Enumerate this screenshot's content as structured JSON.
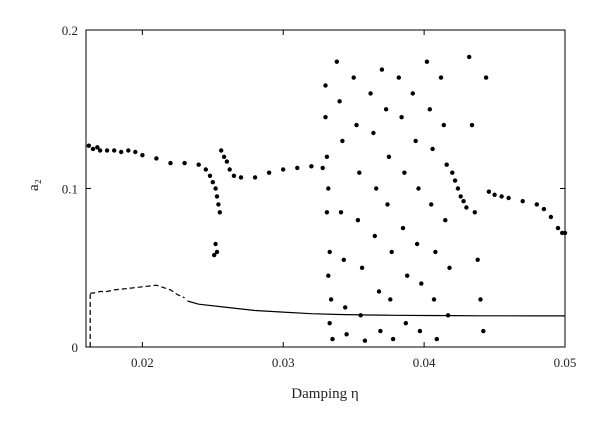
{
  "chart_data": {
    "type": "scatter",
    "title": "",
    "xlabel": "Damping η",
    "ylabel": "a₂",
    "xlim": [
      0.016,
      0.05
    ],
    "ylim": [
      0,
      0.2
    ],
    "x_ticks": [
      0.02,
      0.03,
      0.04,
      0.05
    ],
    "x_tick_labels": [
      "0.02",
      "0.03",
      "0.04",
      "0.05"
    ],
    "y_ticks": [
      0,
      0.1,
      0.2
    ],
    "y_tick_labels": [
      "0",
      "0.1",
      "0.2"
    ],
    "grid": false,
    "legend": "none",
    "series": [
      {
        "style": "points",
        "color": "#000000",
        "points": [
          [
            0.0162,
            0.127
          ],
          [
            0.0165,
            0.125
          ],
          [
            0.0168,
            0.126
          ],
          [
            0.017,
            0.124
          ],
          [
            0.0175,
            0.124
          ],
          [
            0.018,
            0.124
          ],
          [
            0.0185,
            0.123
          ],
          [
            0.019,
            0.124
          ],
          [
            0.0195,
            0.123
          ],
          [
            0.02,
            0.121
          ],
          [
            0.021,
            0.119
          ],
          [
            0.022,
            0.116
          ],
          [
            0.023,
            0.116
          ],
          [
            0.024,
            0.115
          ],
          [
            0.0245,
            0.112
          ],
          [
            0.0248,
            0.108
          ],
          [
            0.025,
            0.104
          ],
          [
            0.0252,
            0.1
          ],
          [
            0.0253,
            0.095
          ],
          [
            0.0254,
            0.09
          ],
          [
            0.0255,
            0.085
          ],
          [
            0.0252,
            0.065
          ],
          [
            0.0253,
            0.06
          ],
          [
            0.0251,
            0.058
          ],
          [
            0.0256,
            0.124
          ],
          [
            0.0258,
            0.12
          ],
          [
            0.026,
            0.117
          ],
          [
            0.0262,
            0.112
          ],
          [
            0.0265,
            0.108
          ],
          [
            0.027,
            0.107
          ],
          [
            0.028,
            0.107
          ],
          [
            0.029,
            0.11
          ],
          [
            0.03,
            0.112
          ],
          [
            0.031,
            0.113
          ],
          [
            0.032,
            0.114
          ],
          [
            0.0328,
            0.113
          ],
          [
            0.033,
            0.165
          ],
          [
            0.033,
            0.145
          ],
          [
            0.0331,
            0.12
          ],
          [
            0.0332,
            0.1
          ],
          [
            0.0331,
            0.085
          ],
          [
            0.0333,
            0.06
          ],
          [
            0.0332,
            0.045
          ],
          [
            0.0334,
            0.03
          ],
          [
            0.0333,
            0.015
          ],
          [
            0.0335,
            0.005
          ],
          [
            0.0338,
            0.18
          ],
          [
            0.034,
            0.155
          ],
          [
            0.0342,
            0.13
          ],
          [
            0.0341,
            0.085
          ],
          [
            0.0343,
            0.055
          ],
          [
            0.0344,
            0.025
          ],
          [
            0.0345,
            0.008
          ],
          [
            0.035,
            0.17
          ],
          [
            0.0352,
            0.14
          ],
          [
            0.0354,
            0.11
          ],
          [
            0.0353,
            0.08
          ],
          [
            0.0356,
            0.05
          ],
          [
            0.0355,
            0.02
          ],
          [
            0.0358,
            0.004
          ],
          [
            0.0362,
            0.16
          ],
          [
            0.0364,
            0.135
          ],
          [
            0.0366,
            0.1
          ],
          [
            0.0365,
            0.07
          ],
          [
            0.0368,
            0.035
          ],
          [
            0.0369,
            0.01
          ],
          [
            0.037,
            0.175
          ],
          [
            0.0373,
            0.15
          ],
          [
            0.0375,
            0.12
          ],
          [
            0.0374,
            0.09
          ],
          [
            0.0377,
            0.06
          ],
          [
            0.0376,
            0.03
          ],
          [
            0.0378,
            0.005
          ],
          [
            0.0382,
            0.17
          ],
          [
            0.0384,
            0.145
          ],
          [
            0.0386,
            0.11
          ],
          [
            0.0385,
            0.075
          ],
          [
            0.0388,
            0.045
          ],
          [
            0.0387,
            0.015
          ],
          [
            0.0392,
            0.16
          ],
          [
            0.0394,
            0.13
          ],
          [
            0.0396,
            0.1
          ],
          [
            0.0395,
            0.065
          ],
          [
            0.0398,
            0.04
          ],
          [
            0.0397,
            0.01
          ],
          [
            0.0402,
            0.18
          ],
          [
            0.0404,
            0.15
          ],
          [
            0.0406,
            0.125
          ],
          [
            0.0405,
            0.09
          ],
          [
            0.0408,
            0.06
          ],
          [
            0.0407,
            0.03
          ],
          [
            0.0409,
            0.005
          ],
          [
            0.0412,
            0.17
          ],
          [
            0.0414,
            0.14
          ],
          [
            0.0416,
            0.115
          ],
          [
            0.0415,
            0.08
          ],
          [
            0.0418,
            0.05
          ],
          [
            0.0417,
            0.02
          ],
          [
            0.042,
            0.11
          ],
          [
            0.0422,
            0.105
          ],
          [
            0.0424,
            0.1
          ],
          [
            0.0426,
            0.095
          ],
          [
            0.0428,
            0.092
          ],
          [
            0.043,
            0.088
          ],
          [
            0.0432,
            0.183
          ],
          [
            0.0434,
            0.14
          ],
          [
            0.0436,
            0.085
          ],
          [
            0.0438,
            0.055
          ],
          [
            0.044,
            0.03
          ],
          [
            0.0442,
            0.01
          ],
          [
            0.0444,
            0.17
          ],
          [
            0.0446,
            0.098
          ],
          [
            0.045,
            0.096
          ],
          [
            0.0455,
            0.095
          ],
          [
            0.046,
            0.094
          ],
          [
            0.047,
            0.092
          ],
          [
            0.048,
            0.09
          ],
          [
            0.0485,
            0.087
          ],
          [
            0.049,
            0.082
          ],
          [
            0.0495,
            0.075
          ],
          [
            0.0498,
            0.072
          ],
          [
            0.05,
            0.072
          ]
        ]
      },
      {
        "style": "solid-line",
        "color": "#000000",
        "x": [
          0.0232,
          0.024,
          0.026,
          0.028,
          0.03,
          0.032,
          0.034,
          0.036,
          0.038,
          0.04,
          0.042,
          0.044,
          0.046,
          0.048,
          0.05
        ],
        "y": [
          0.029,
          0.027,
          0.025,
          0.023,
          0.022,
          0.021,
          0.0205,
          0.0202,
          0.02,
          0.0199,
          0.0198,
          0.0197,
          0.0197,
          0.0196,
          0.0196
        ]
      },
      {
        "style": "dashed-line",
        "color": "#000000",
        "x": [
          0.0163,
          0.0165,
          0.017,
          0.0175,
          0.018,
          0.019,
          0.02,
          0.021,
          0.022,
          0.0225,
          0.0228,
          0.023
        ],
        "y": [
          0.034,
          0.034,
          0.035,
          0.035,
          0.036,
          0.037,
          0.038,
          0.039,
          0.036,
          0.033,
          0.032,
          0.031
        ]
      },
      {
        "style": "dashed-vertical",
        "color": "#000000",
        "x": [
          0.0163,
          0.0163
        ],
        "y": [
          0,
          0.034
        ]
      }
    ]
  }
}
